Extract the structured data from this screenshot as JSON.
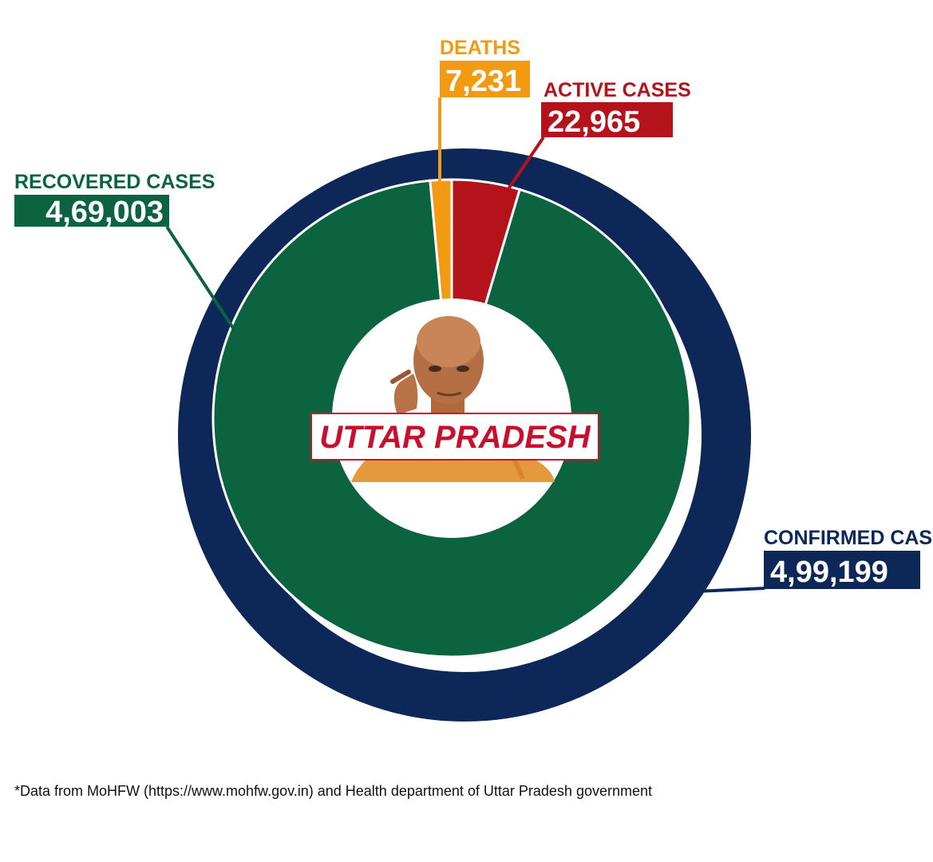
{
  "chart_data": {
    "type": "pie",
    "title": "",
    "outer_ring": {
      "label": "CONFIRMED CASES",
      "value_text": "4,99,199",
      "value": 499199,
      "color": "#0d2858"
    },
    "categories": [
      "RECOVERED CASES",
      "DEATHS",
      "ACTIVE CASES"
    ],
    "value_texts": [
      "4,69,003",
      "7,231",
      "22,965"
    ],
    "values": [
      469003,
      7231,
      22965
    ],
    "colors": [
      "#0b6340",
      "#f29a12",
      "#b5131c"
    ],
    "center_label": "UTTAR PRADESH"
  },
  "footnote": "*Data from MoHFW (https://www.mohfw.gov.in) and Health department of Uttar Pradesh government"
}
